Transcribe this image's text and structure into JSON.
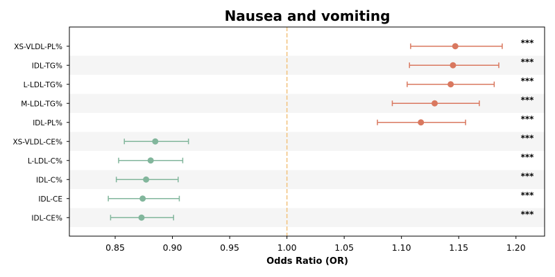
{
  "chart_data": {
    "type": "forest",
    "title": "Nausea and vomiting",
    "xlabel": "Odds Ratio (OR)",
    "xlim": [
      0.81,
      1.225
    ],
    "xticks": [
      0.85,
      0.9,
      0.95,
      1.0,
      1.05,
      1.1,
      1.15,
      1.2
    ],
    "xtick_labels": [
      "0.85",
      "0.90",
      "0.95",
      "1.00",
      "1.05",
      "1.10",
      "1.15",
      "1.20"
    ],
    "reference_line": 1.0,
    "colors": {
      "positive": "#d9785f",
      "negative": "#82b69c",
      "reference": "#f2c27c",
      "band": "#f5f5f5"
    },
    "rows": [
      {
        "label": "XS-VLDL-PL%",
        "or": 1.147,
        "lower": 1.108,
        "upper": 1.188,
        "sig": "***"
      },
      {
        "label": "IDL-TG%",
        "or": 1.145,
        "lower": 1.107,
        "upper": 1.185,
        "sig": "***"
      },
      {
        "label": "L-LDL-TG%",
        "or": 1.143,
        "lower": 1.105,
        "upper": 1.181,
        "sig": "***"
      },
      {
        "label": "M-LDL-TG%",
        "or": 1.129,
        "lower": 1.092,
        "upper": 1.168,
        "sig": "***"
      },
      {
        "label": "IDL-PL%",
        "or": 1.117,
        "lower": 1.079,
        "upper": 1.156,
        "sig": "***"
      },
      {
        "label": "XS-VLDL-CE%",
        "or": 0.885,
        "lower": 0.858,
        "upper": 0.914,
        "sig": "***"
      },
      {
        "label": "L-LDL-C%",
        "or": 0.881,
        "lower": 0.853,
        "upper": 0.909,
        "sig": "***"
      },
      {
        "label": "IDL-C%",
        "or": 0.877,
        "lower": 0.851,
        "upper": 0.905,
        "sig": "***"
      },
      {
        "label": "IDL-CE",
        "or": 0.874,
        "lower": 0.844,
        "upper": 0.906,
        "sig": "***"
      },
      {
        "label": "IDL-CE%",
        "or": 0.873,
        "lower": 0.846,
        "upper": 0.901,
        "sig": "***"
      }
    ]
  }
}
